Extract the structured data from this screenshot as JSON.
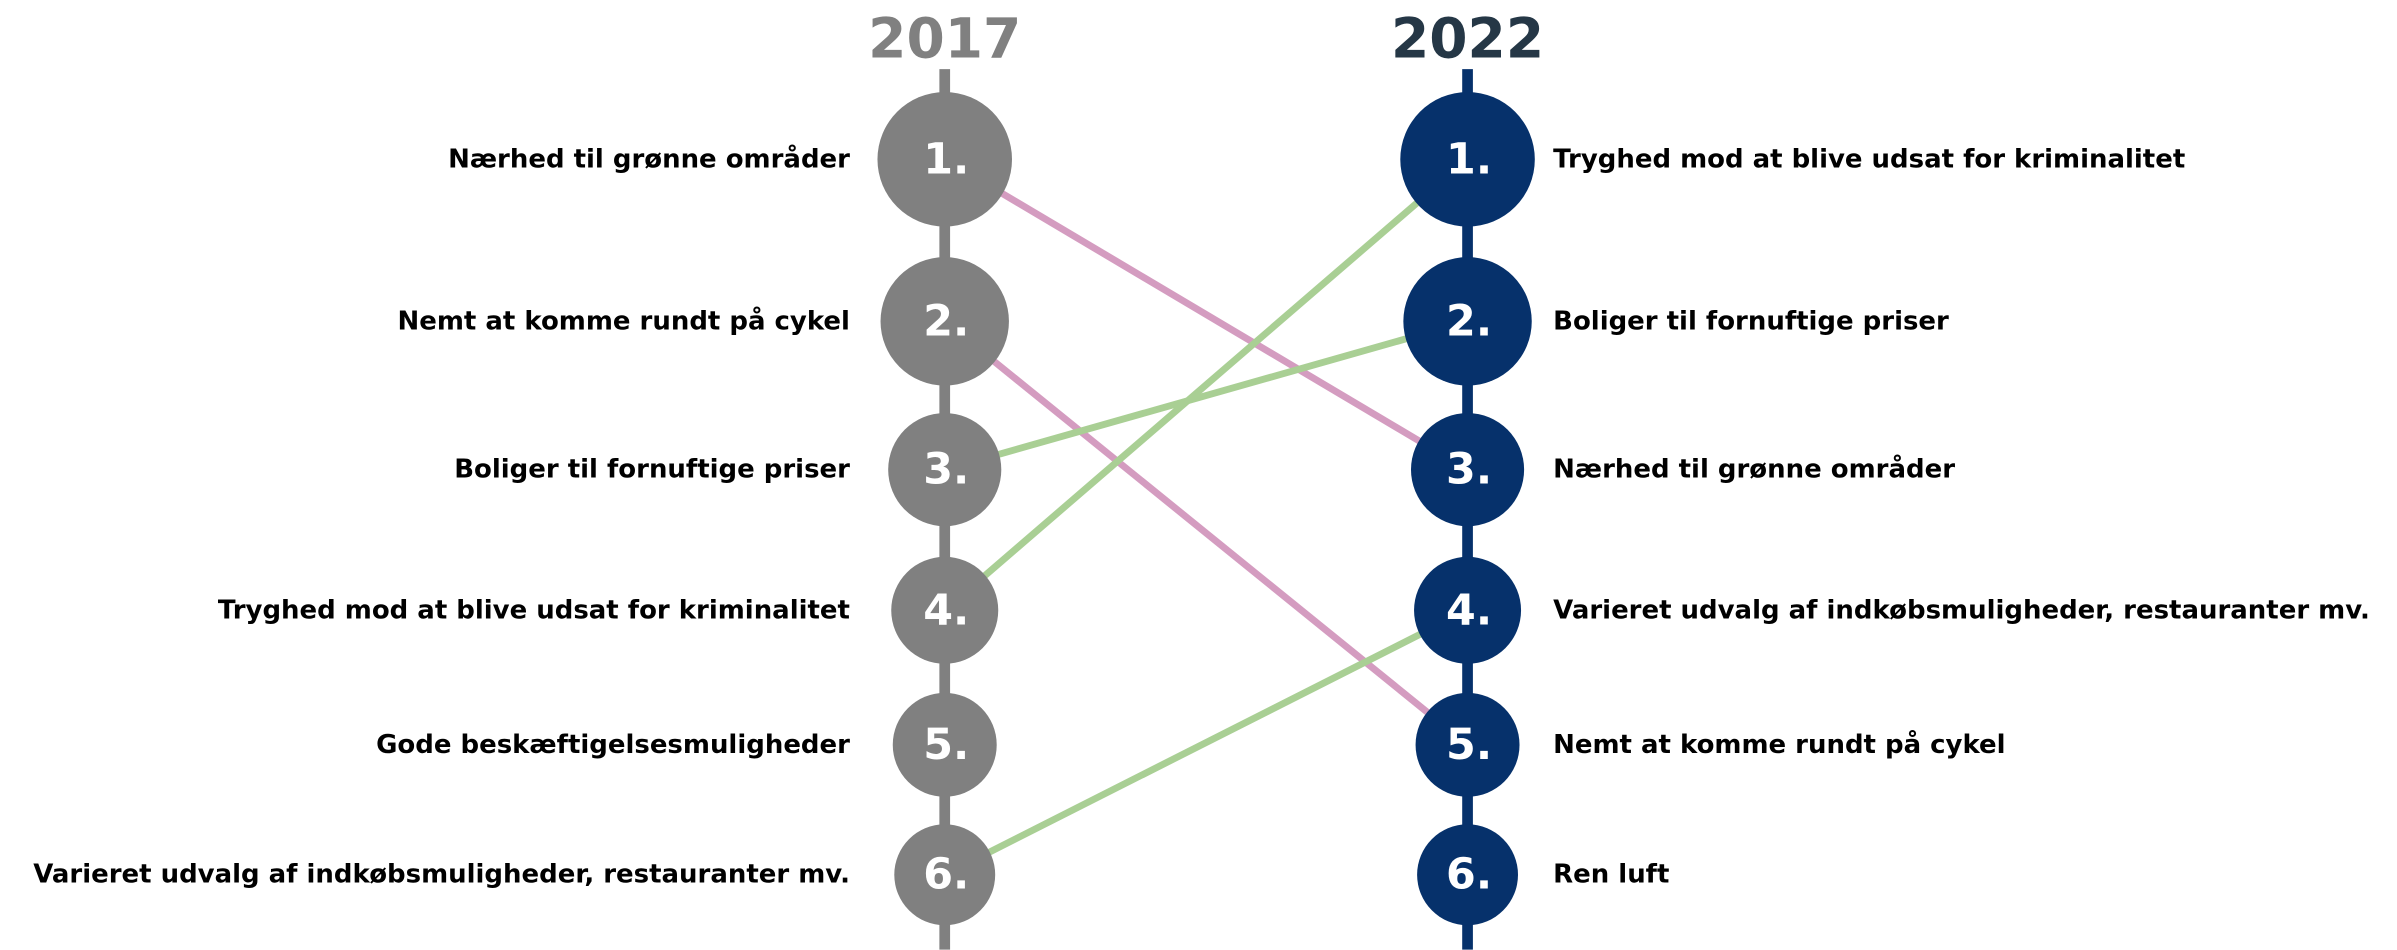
{
  "columns": [
    {
      "year": "2017",
      "items": [
        {
          "rank": "1.",
          "label": "Nærhed til grønne områder"
        },
        {
          "rank": "2.",
          "label": "Nemt at komme rundt på cykel"
        },
        {
          "rank": "3.",
          "label": "Boliger til fornuftige priser"
        },
        {
          "rank": "4.",
          "label": "Tryghed mod at blive udsat for kriminalitet"
        },
        {
          "rank": "5.",
          "label": "Gode beskæftigelsesmuligheder"
        },
        {
          "rank": "6.",
          "label": "Varieret udvalg af indkøbsmuligheder, restauranter mv."
        }
      ]
    },
    {
      "year": "2022",
      "items": [
        {
          "rank": "1.",
          "label": "Tryghed mod at blive udsat for kriminalitet"
        },
        {
          "rank": "2.",
          "label": "Boliger til fornuftige priser"
        },
        {
          "rank": "3.",
          "label": "Nærhed til grønne områder"
        },
        {
          "rank": "4.",
          "label": "Varieret udvalg af indkøbsmuligheder, restauranter mv."
        },
        {
          "rank": "5.",
          "label": "Nemt at komme rundt på cykel"
        },
        {
          "rank": "6.",
          "label": "Ren luft"
        }
      ]
    }
  ]
}
